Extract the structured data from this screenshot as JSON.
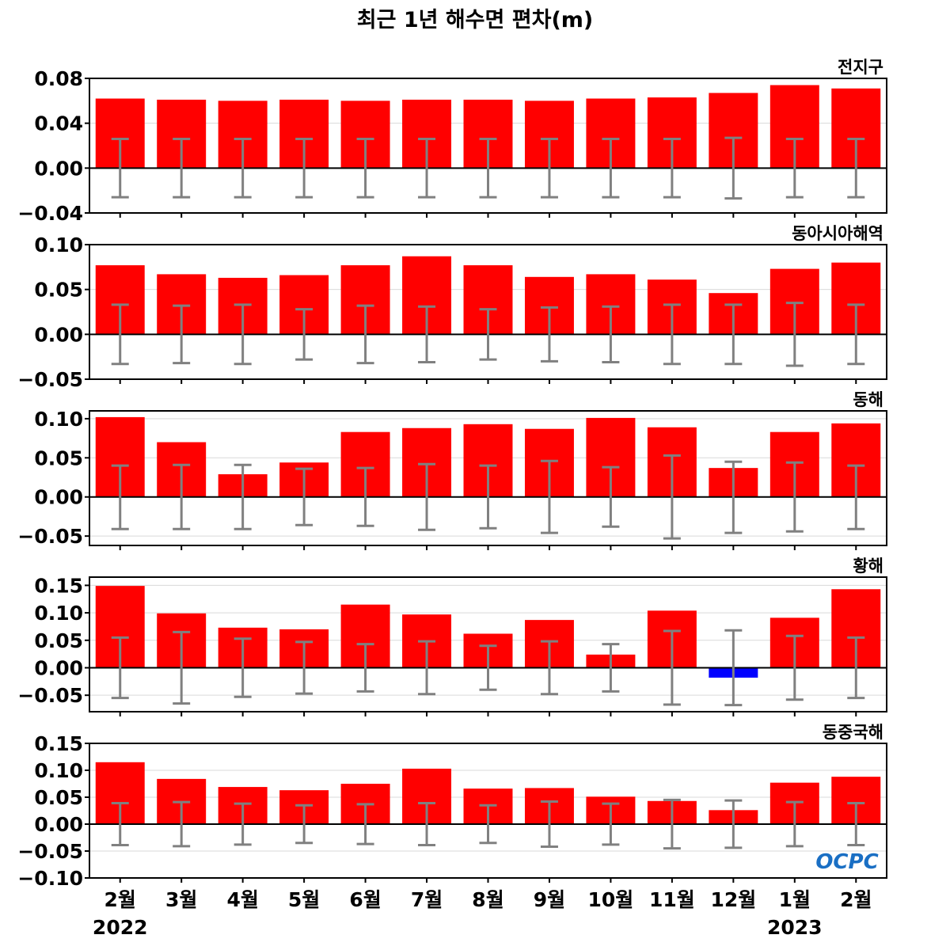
{
  "title": "최근 1년 해수면 편차(m)",
  "logo_text": "OCPC",
  "colors": {
    "positive": "#ff0000",
    "negative": "#0000ff",
    "error_bar": "#808080",
    "grid": "#d9d9d9",
    "logo": "#1a6fc4"
  },
  "x_axis": {
    "categories": [
      "2월",
      "3월",
      "4월",
      "5월",
      "6월",
      "7월",
      "8월",
      "9월",
      "10월",
      "11월",
      "12월",
      "1월",
      "2월"
    ],
    "years": [
      {
        "label": "2022",
        "under_index": 0
      },
      {
        "label": "2023",
        "under_index": 11
      }
    ]
  },
  "chart_data": [
    {
      "type": "bar",
      "title": "전지구",
      "ylim": [
        -0.04,
        0.08
      ],
      "yticks": [
        -0.04,
        0.0,
        0.04,
        0.08
      ],
      "ytick_labels": [
        "−0.04",
        "0.00",
        "0.04",
        "0.08"
      ],
      "values": [
        0.062,
        0.061,
        0.06,
        0.061,
        0.06,
        0.061,
        0.061,
        0.06,
        0.062,
        0.063,
        0.067,
        0.074,
        0.071
      ],
      "error_upper": [
        0.026,
        0.026,
        0.026,
        0.026,
        0.026,
        0.026,
        0.026,
        0.026,
        0.026,
        0.026,
        0.027,
        0.026,
        0.026
      ],
      "error_lower": [
        -0.026,
        -0.026,
        -0.026,
        -0.026,
        -0.026,
        -0.026,
        -0.026,
        -0.026,
        -0.026,
        -0.026,
        -0.027,
        -0.026,
        -0.026
      ],
      "grid": true
    },
    {
      "type": "bar",
      "title": "동아시아해역",
      "ylim": [
        -0.05,
        0.1
      ],
      "yticks": [
        -0.05,
        0.0,
        0.05,
        0.1
      ],
      "ytick_labels": [
        "−0.05",
        "0.00",
        "0.05",
        "0.10"
      ],
      "values": [
        0.077,
        0.067,
        0.063,
        0.066,
        0.077,
        0.087,
        0.077,
        0.064,
        0.067,
        0.061,
        0.046,
        0.073,
        0.08
      ],
      "error_upper": [
        0.033,
        0.032,
        0.033,
        0.028,
        0.032,
        0.031,
        0.028,
        0.03,
        0.031,
        0.033,
        0.033,
        0.035,
        0.033
      ],
      "error_lower": [
        -0.033,
        -0.032,
        -0.033,
        -0.028,
        -0.032,
        -0.031,
        -0.028,
        -0.03,
        -0.031,
        -0.033,
        -0.033,
        -0.035,
        -0.033
      ],
      "grid": true
    },
    {
      "type": "bar",
      "title": "동해",
      "ylim": [
        -0.062,
        0.11
      ],
      "yticks": [
        -0.05,
        0.0,
        0.05,
        0.1
      ],
      "ytick_labels": [
        "−0.05",
        "0.00",
        "0.05",
        "0.10"
      ],
      "values": [
        0.102,
        0.07,
        0.029,
        0.044,
        0.083,
        0.088,
        0.093,
        0.087,
        0.101,
        0.089,
        0.037,
        0.083,
        0.094
      ],
      "error_upper": [
        0.04,
        0.041,
        0.041,
        0.036,
        0.037,
        0.042,
        0.04,
        0.046,
        0.038,
        0.053,
        0.045,
        0.044,
        0.04
      ],
      "error_lower": [
        -0.041,
        -0.041,
        -0.041,
        -0.036,
        -0.037,
        -0.042,
        -0.04,
        -0.046,
        -0.038,
        -0.053,
        -0.046,
        -0.044,
        -0.041
      ],
      "grid": true
    },
    {
      "type": "bar",
      "title": "황해",
      "ylim": [
        -0.08,
        0.165
      ],
      "yticks": [
        -0.05,
        0.0,
        0.05,
        0.1,
        0.15
      ],
      "ytick_labels": [
        "−0.05",
        "0.00",
        "0.05",
        "0.10",
        "0.15"
      ],
      "values": [
        0.149,
        0.099,
        0.073,
        0.07,
        0.115,
        0.097,
        0.062,
        0.087,
        0.024,
        0.104,
        -0.018,
        0.091,
        0.143
      ],
      "error_upper": [
        0.055,
        0.065,
        0.053,
        0.047,
        0.043,
        0.048,
        0.04,
        0.048,
        0.043,
        0.067,
        0.068,
        0.058,
        0.055
      ],
      "error_lower": [
        -0.055,
        -0.065,
        -0.053,
        -0.047,
        -0.043,
        -0.048,
        -0.04,
        -0.048,
        -0.043,
        -0.067,
        -0.068,
        -0.058,
        -0.055
      ],
      "grid": true
    },
    {
      "type": "bar",
      "title": "동중국해",
      "ylim": [
        -0.1,
        0.15
      ],
      "yticks": [
        -0.1,
        -0.05,
        0.0,
        0.05,
        0.1,
        0.15
      ],
      "ytick_labels": [
        "−0.10",
        "−0.05",
        "0.00",
        "0.05",
        "0.10",
        "0.15"
      ],
      "values": [
        0.115,
        0.084,
        0.069,
        0.063,
        0.075,
        0.103,
        0.066,
        0.067,
        0.051,
        0.043,
        0.026,
        0.077,
        0.088
      ],
      "error_upper": [
        0.039,
        0.041,
        0.038,
        0.035,
        0.037,
        0.039,
        0.035,
        0.042,
        0.038,
        0.045,
        0.044,
        0.041,
        0.039
      ],
      "error_lower": [
        -0.039,
        -0.041,
        -0.038,
        -0.035,
        -0.037,
        -0.039,
        -0.035,
        -0.042,
        -0.038,
        -0.045,
        -0.044,
        -0.041,
        -0.039
      ],
      "grid": true
    }
  ]
}
